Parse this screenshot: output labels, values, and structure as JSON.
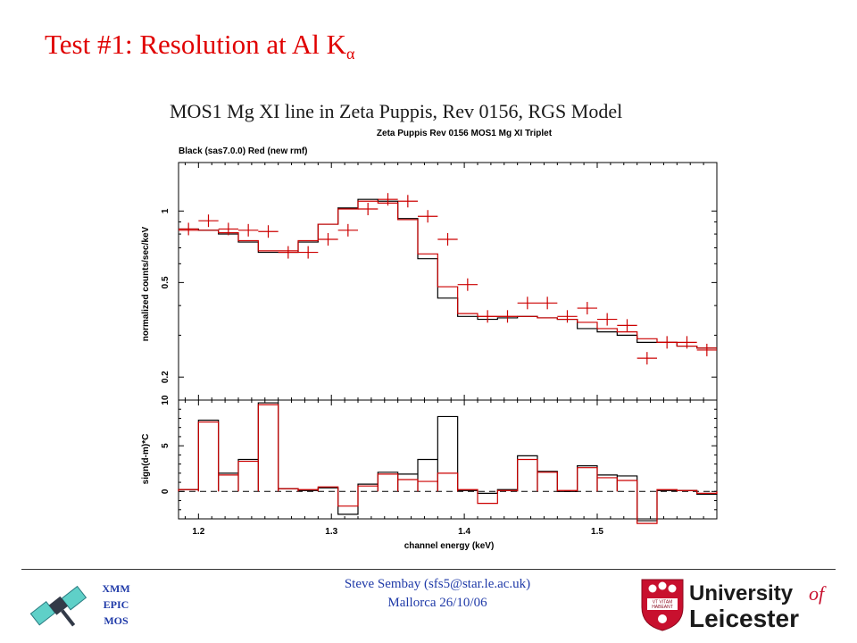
{
  "slide": {
    "title_main": "Test #1: Resolution  at Al K",
    "title_sub": "α",
    "caption": "MOS1 Mg XI line in Zeta Puppis, Rev 0156, RGS Model"
  },
  "footer": {
    "author": "Steve Sembay (sfs5@star.le.ac.uk)",
    "place_date": "Mallorca 26/10/06",
    "xmm_lines": [
      "XMM",
      "EPIC",
      "MOS"
    ],
    "logo_line1": "University",
    "logo_of": "of",
    "logo_line2": "Leicester",
    "shield_text": [
      "VT VITAM",
      "HABEANT"
    ]
  },
  "colors": {
    "title": "#e00000",
    "model_black": "#000000",
    "model_red": "#cc0000",
    "footer_text": "#1f3aa8",
    "logo_red": "#c8102e"
  },
  "chart_data": {
    "type": "line",
    "title": "Zeta Puppis  Rev 0156  MOS1  Mg XI Triplet",
    "subtitle": "Black (sas7.0.0)  Red (new rmf)",
    "xlabel": "channel energy (keV)",
    "xlim": [
      1.185,
      1.59
    ],
    "xticks": [
      1.2,
      1.3,
      1.4,
      1.5
    ],
    "xtick_labels": [
      "1.2",
      "1.3",
      "1.4",
      "1.5"
    ],
    "bin_edges": [
      1.185,
      1.2,
      1.215,
      1.23,
      1.245,
      1.26,
      1.275,
      1.29,
      1.305,
      1.32,
      1.335,
      1.35,
      1.365,
      1.38,
      1.395,
      1.41,
      1.425,
      1.44,
      1.455,
      1.47,
      1.485,
      1.5,
      1.515,
      1.53,
      1.545,
      1.56,
      1.575,
      1.59
    ],
    "upper_panel": {
      "ylabel": "normalized counts/sec/keV",
      "yscale": "log",
      "ylim": [
        0.16,
        1.6
      ],
      "yticks": [
        0.2,
        0.5,
        1
      ],
      "ytick_labels": [
        "0.2",
        "0.5",
        "1"
      ],
      "series": [
        {
          "color": "black",
          "values": [
            0.84,
            0.83,
            0.8,
            0.74,
            0.67,
            0.67,
            0.74,
            0.88,
            1.03,
            1.12,
            1.1,
            0.93,
            0.63,
            0.43,
            0.36,
            0.35,
            0.355,
            0.36,
            0.355,
            0.35,
            0.32,
            0.31,
            0.3,
            0.28,
            0.28,
            0.27,
            0.265
          ]
        },
        {
          "color": "red",
          "values": [
            0.83,
            0.83,
            0.81,
            0.75,
            0.68,
            0.68,
            0.75,
            0.88,
            1.02,
            1.1,
            1.08,
            0.92,
            0.66,
            0.48,
            0.37,
            0.36,
            0.36,
            0.36,
            0.355,
            0.35,
            0.34,
            0.32,
            0.31,
            0.29,
            0.28,
            0.27,
            0.265
          ]
        }
      ],
      "data_points": {
        "x": [
          1.1925,
          1.2075,
          1.2225,
          1.2375,
          1.2525,
          1.2675,
          1.2825,
          1.2975,
          1.3125,
          1.3275,
          1.3425,
          1.3575,
          1.3725,
          1.3875,
          1.4025,
          1.4175,
          1.4325,
          1.4475,
          1.4625,
          1.4775,
          1.4925,
          1.5075,
          1.5225,
          1.5375,
          1.5525,
          1.5675,
          1.5825
        ],
        "y": [
          0.84,
          0.91,
          0.84,
          0.83,
          0.82,
          0.67,
          0.67,
          0.76,
          0.83,
          1.02,
          1.12,
          1.1,
          0.95,
          0.76,
          0.49,
          0.36,
          0.36,
          0.41,
          0.41,
          0.36,
          0.39,
          0.35,
          0.33,
          0.24,
          0.28,
          0.28,
          0.26
        ]
      }
    },
    "lower_panel": {
      "ylabel": "sign(d-m)*C",
      "ylim": [
        -3,
        10
      ],
      "yticks": [
        0,
        5,
        10
      ],
      "ytick_labels": [
        "0",
        "5",
        "10"
      ],
      "zero_line": "dashed",
      "series": [
        {
          "color": "black",
          "values": [
            0.2,
            7.8,
            2.0,
            3.5,
            9.7,
            0.3,
            0.1,
            0.4,
            -2.5,
            0.8,
            2.1,
            1.9,
            3.5,
            8.2,
            0.1,
            -0.2,
            0.2,
            3.9,
            2.2,
            0.0,
            2.8,
            1.8,
            1.7,
            -3.2,
            0.1,
            0.1,
            -0.3
          ]
        },
        {
          "color": "red",
          "values": [
            0.2,
            7.6,
            1.8,
            3.3,
            9.5,
            0.3,
            0.2,
            0.5,
            -1.6,
            0.6,
            1.9,
            1.3,
            1.1,
            2.0,
            0.2,
            -1.3,
            0.1,
            3.5,
            2.1,
            0.1,
            2.6,
            1.5,
            1.2,
            -3.5,
            0.2,
            0.1,
            -0.2
          ]
        }
      ]
    }
  }
}
